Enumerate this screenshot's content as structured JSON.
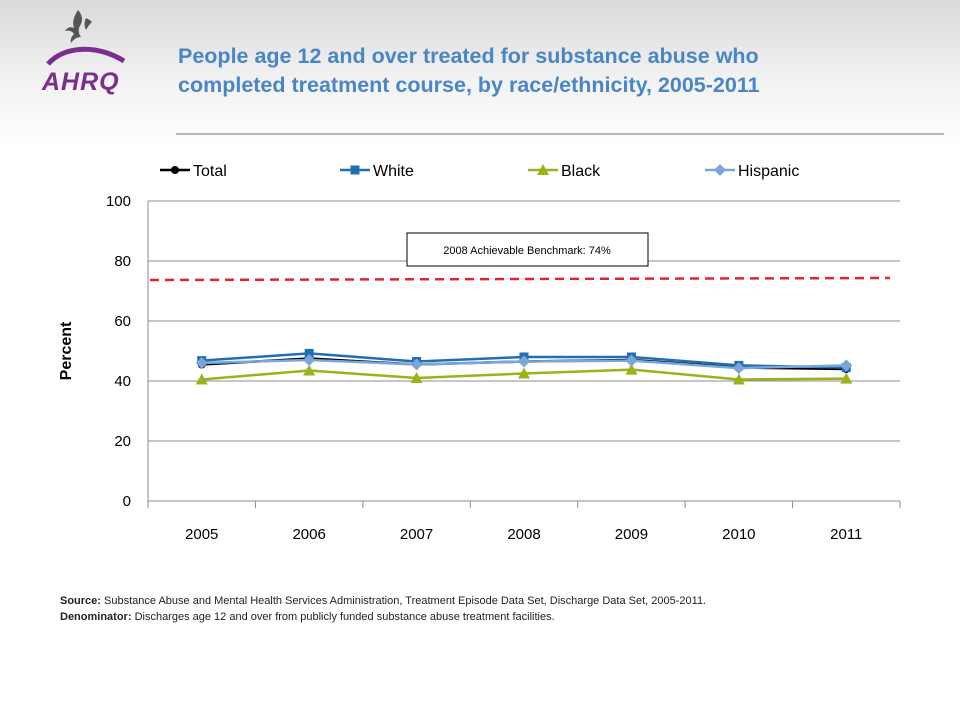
{
  "header": {
    "logo_text": "AHRQ",
    "title_line1": "People age 12 and over treated for substance abuse who",
    "title_line2": "completed treatment course, by race/ethnicity, 2005-2011"
  },
  "colors": {
    "title": "#4a86c5",
    "total": "#000000",
    "white": "#1f6fb5",
    "black": "#9bb31a",
    "hispanic": "#7aa7d8",
    "benchmark": "#e0262b",
    "logo_purple": "#7a2e8e"
  },
  "chart_data": {
    "type": "line",
    "categories": [
      "2005",
      "2006",
      "2007",
      "2008",
      "2009",
      "2010",
      "2011"
    ],
    "series": [
      {
        "name": "Total",
        "values": [
          45.5,
          47.5,
          45.5,
          46.5,
          47.0,
          44.5,
          44.0
        ],
        "color": "#000000",
        "marker": "circle"
      },
      {
        "name": "White",
        "values": [
          46.8,
          49.2,
          46.5,
          48.0,
          48.0,
          45.2,
          44.5
        ],
        "color": "#1f6fb5",
        "marker": "square"
      },
      {
        "name": "Black",
        "values": [
          40.5,
          43.5,
          41.0,
          42.5,
          43.8,
          40.5,
          40.8
        ],
        "color": "#9bb31a",
        "marker": "triangle"
      },
      {
        "name": "Hispanic",
        "values": [
          46.0,
          47.0,
          45.5,
          46.5,
          46.8,
          44.3,
          45.2
        ],
        "color": "#7aa7d8",
        "marker": "diamond"
      }
    ],
    "benchmark": {
      "value": 74,
      "label": "2008 Achievable Benchmark: 74%"
    },
    "ylabel": "Percent",
    "xlabel": "",
    "ylim": [
      0,
      100
    ],
    "yticks": [
      "0",
      "20",
      "40",
      "60",
      "80",
      "100"
    ],
    "grid": true,
    "legend_position": "top"
  },
  "footer": {
    "source_label": "Source:",
    "source_text": "Substance Abuse and Mental Health Services Administration, Treatment Episode Data Set, Discharge Data Set, 2005-2011.",
    "denominator_label": "Denominator:",
    "denominator_text": "Discharges age 12 and over from publicly funded substance abuse treatment facilities."
  }
}
